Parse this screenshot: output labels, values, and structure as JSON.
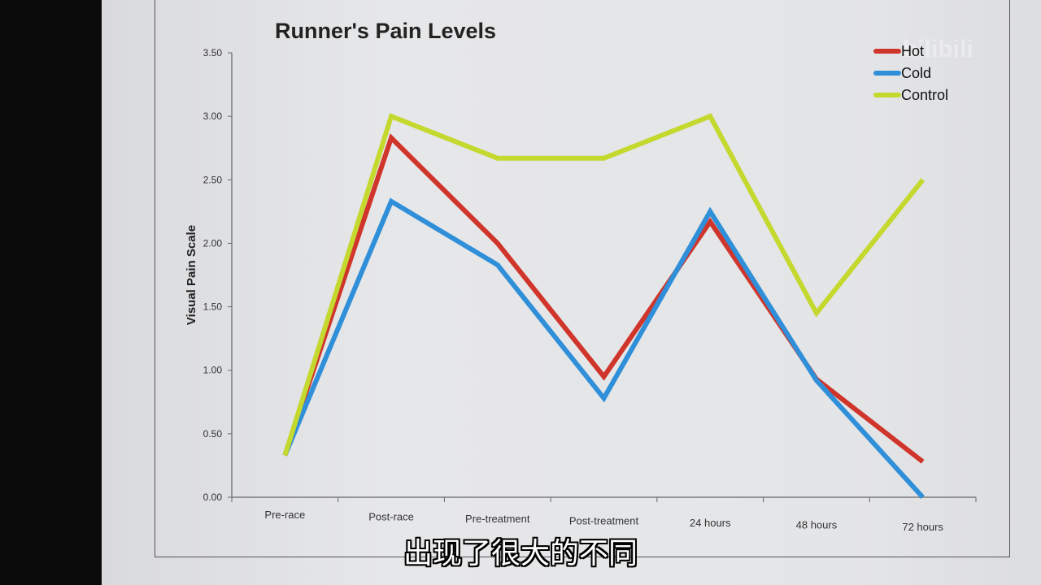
{
  "chart_data": {
    "type": "line",
    "title": "Runner's Pain Levels",
    "xlabel": "",
    "ylabel": "Visual Pain Scale",
    "categories": [
      "Pre-race",
      "Post-race",
      "Pre-treatment",
      "Post-treatment",
      "24 hours",
      "48 hours",
      "72 hours"
    ],
    "ylim": [
      0,
      3.5
    ],
    "yticks": [
      "0.00",
      "0.50",
      "1.00",
      "1.50",
      "2.00",
      "2.50",
      "3.00",
      "3.50"
    ],
    "grid": false,
    "legend_position": "top-right",
    "series": [
      {
        "name": "Hot",
        "color": "#d0352b",
        "values": [
          0.33,
          2.83,
          2.0,
          0.95,
          2.17,
          0.93,
          0.28
        ]
      },
      {
        "name": "Cold",
        "color": "#2f8fd8",
        "values": [
          0.33,
          2.33,
          1.83,
          0.78,
          2.25,
          0.92,
          0.0
        ]
      },
      {
        "name": "Control",
        "color": "#c4d82e",
        "values": [
          0.33,
          3.0,
          2.67,
          2.67,
          3.0,
          1.45,
          2.5
        ]
      }
    ]
  },
  "subtitle": "出现了很大的不同",
  "watermark": "bilibili 正版"
}
